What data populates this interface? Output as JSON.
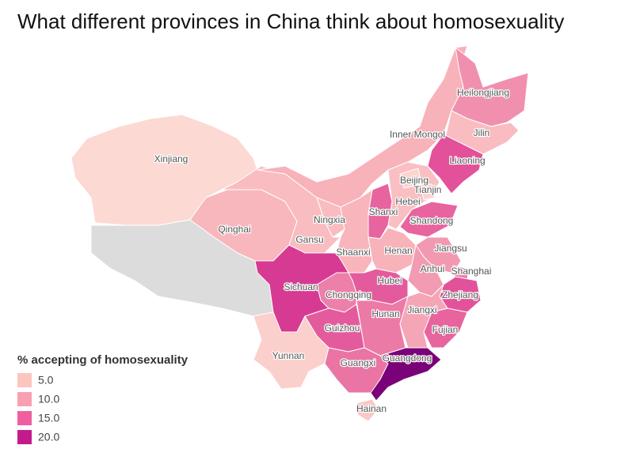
{
  "chart_data": {
    "type": "choropleth",
    "title": "What different provinces in China think about homosexuality",
    "legend": {
      "title": "% accepting of homosexuality",
      "ticks": [
        {
          "value": 5,
          "label": "5.0"
        },
        {
          "value": 10,
          "label": "10.0"
        },
        {
          "value": 15,
          "label": "15.0"
        },
        {
          "value": 20,
          "label": "20.0"
        }
      ],
      "colors": [
        "#fcc5c0",
        "#f99fb2",
        "#ef5fa0",
        "#c51b8a"
      ]
    },
    "provinces": [
      {
        "name": "Xinjiang",
        "value": 5,
        "color": "#fdd9d3"
      },
      {
        "name": null,
        "value": null,
        "color": "#dcdcdc"
      },
      {
        "name": "Qinghai",
        "value": 9,
        "color": "#f8b7bd"
      },
      {
        "name": "Gansu",
        "value": 8,
        "color": "#f9bcc0"
      },
      {
        "name": "Inner Mongol",
        "value": 9,
        "color": "#f8b2ba"
      },
      {
        "name": "Heilongjiang",
        "value": 12,
        "color": "#f090ae"
      },
      {
        "name": "Jilin",
        "value": 8,
        "color": "#f9bcc0"
      },
      {
        "name": "Liaoning",
        "value": 15,
        "color": "#e2519a"
      },
      {
        "name": "Hebei",
        "value": 8,
        "color": "#f9bfc2"
      },
      {
        "name": "Beijing",
        "value": 6,
        "color": "#fcd3cf"
      },
      {
        "name": "Tianjin",
        "value": 6,
        "color": "#fcd3cf"
      },
      {
        "name": "Shanxi",
        "value": 14,
        "color": "#e7649f"
      },
      {
        "name": "Ningxia",
        "value": 8,
        "color": "#f9bcc0"
      },
      {
        "name": "Shaanxi",
        "value": 9,
        "color": "#f8b5bc"
      },
      {
        "name": "Henan",
        "value": 9,
        "color": "#f8b2ba"
      },
      {
        "name": "Shandong",
        "value": 14,
        "color": "#e7649f"
      },
      {
        "name": "Jiangsu",
        "value": 11,
        "color": "#f299b1"
      },
      {
        "name": "Anhui",
        "value": 11,
        "color": "#f29bb2"
      },
      {
        "name": "Shanghai",
        "value": 13,
        "color": "#ec7aa6"
      },
      {
        "name": "Zhejiang",
        "value": 15,
        "color": "#e2529a"
      },
      {
        "name": "Fujian",
        "value": 14,
        "color": "#e7649f"
      },
      {
        "name": "Jiangxi",
        "value": 10,
        "color": "#f5a6b6"
      },
      {
        "name": "Hubei",
        "value": 14,
        "color": "#e45b9d"
      },
      {
        "name": "Hunan",
        "value": 13,
        "color": "#ec7aa6"
      },
      {
        "name": "Chongqing",
        "value": 13,
        "color": "#ec80a8"
      },
      {
        "name": "Sichuan",
        "value": 17,
        "color": "#d73a93"
      },
      {
        "name": "Guizhou",
        "value": 14,
        "color": "#e45b9d"
      },
      {
        "name": "Yunnan",
        "value": 6,
        "color": "#fbcfcb"
      },
      {
        "name": "Guangxi",
        "value": 13,
        "color": "#ea74a4"
      },
      {
        "name": "Guangdong",
        "value": 22,
        "color": "#7a0177"
      },
      {
        "name": "Hainan",
        "value": 7,
        "color": "#fac8c6"
      }
    ]
  }
}
